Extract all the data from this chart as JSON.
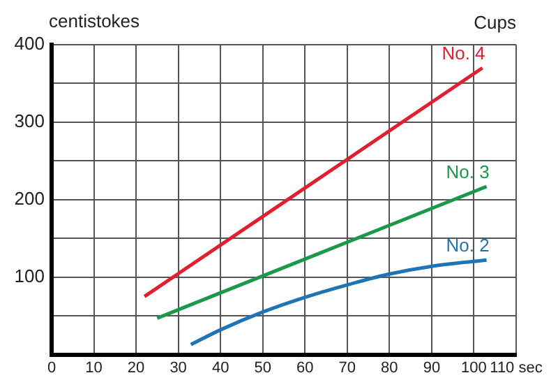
{
  "chart_data": {
    "type": "line",
    "annotations": [
      "Cups"
    ],
    "xlim": [
      0,
      110
    ],
    "xticks": [
      0,
      10,
      20,
      30,
      40,
      50,
      60,
      70,
      80,
      90,
      100,
      {
        "value": 110,
        "label": "110 sec"
      }
    ],
    "ylim": [
      0,
      400
    ],
    "yticks": [
      {
        "value": 0,
        "label": null
      },
      {
        "value": 50,
        "label": null
      },
      100,
      {
        "value": 150,
        "label": null
      },
      200,
      {
        "value": 250,
        "label": null
      },
      300,
      {
        "value": 350,
        "label": null
      },
      400
    ],
    "ylabel": "centistokes",
    "grid": true,
    "legend": false,
    "marker": "none",
    "line_style": "solid",
    "series": [
      {
        "name": "No. 4",
        "color": "#e0202e",
        "x": [
          22,
          102
        ],
        "values": [
          75,
          370
        ]
      },
      {
        "name": "No. 3",
        "color": "#1a9a48",
        "x": [
          25,
          103
        ],
        "values": [
          47,
          217
        ]
      },
      {
        "name": "No. 2",
        "color": "#1f74b5",
        "x": [
          33,
          40,
          50,
          60,
          70,
          80,
          90,
          103
        ],
        "values": [
          13,
          32,
          55,
          74,
          90,
          104,
          114,
          122
        ]
      }
    ]
  }
}
